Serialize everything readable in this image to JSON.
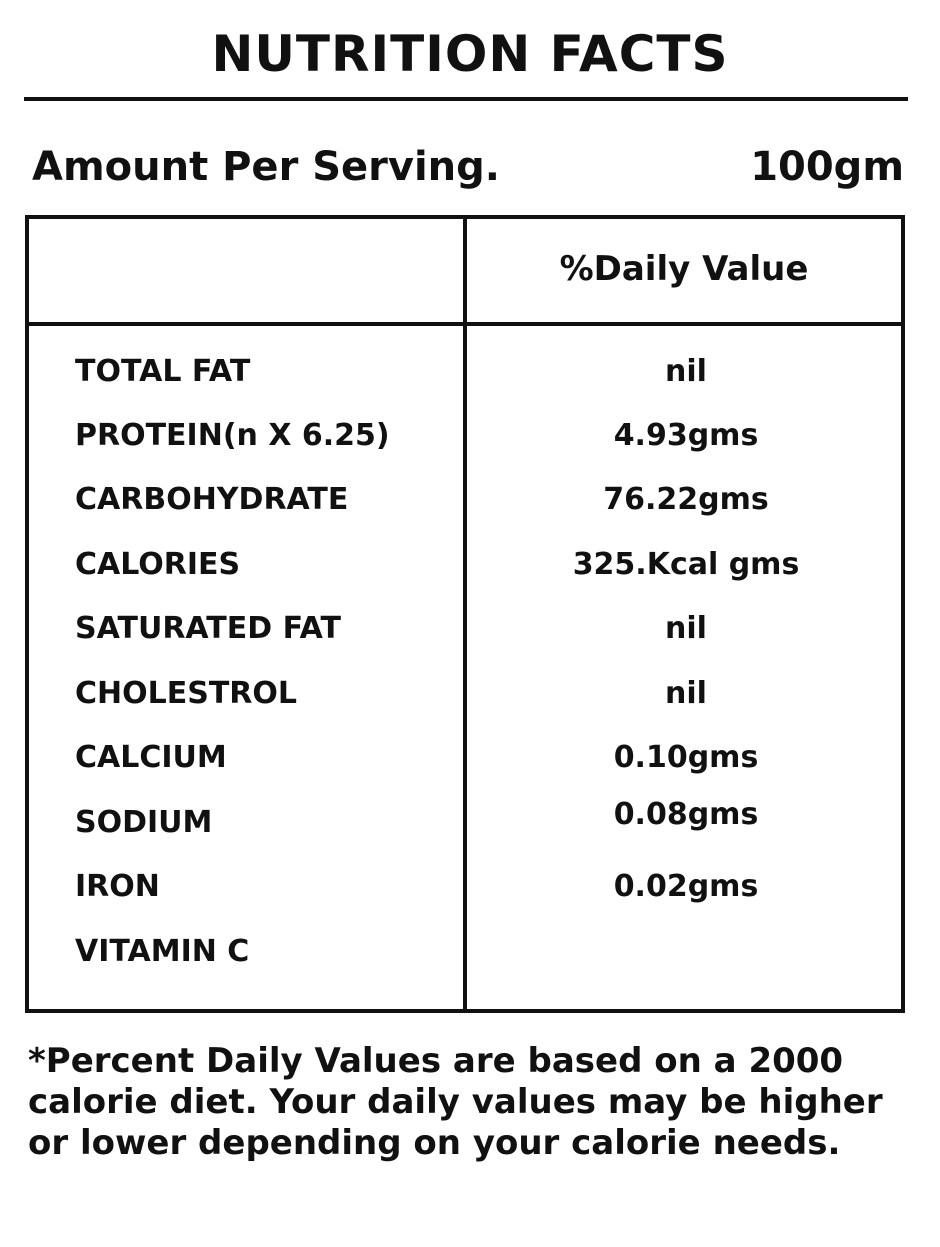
{
  "title": "NUTRITION FACTS",
  "serving": {
    "label": "Amount Per Serving.",
    "value": "100gm"
  },
  "table": {
    "column_header": "%Daily Value",
    "rows": [
      {
        "label": "TOTAL FAT",
        "value": "nil"
      },
      {
        "label": "PROTEIN(n X 6.25)",
        "value": "4.93gms"
      },
      {
        "label": "CARBOHYDRATE",
        "value": "76.22gms"
      },
      {
        "label": "CALORIES",
        "value": "325.Kcal gms"
      },
      {
        "label": "SATURATED FAT",
        "value": "nil"
      },
      {
        "label": "CHOLESTROL",
        "value": "nil"
      },
      {
        "label": "CALCIUM",
        "value": "0.10gms"
      },
      {
        "label": "SODIUM",
        "value": "0.08gms"
      },
      {
        "label": "IRON",
        "value": "0.02gms"
      },
      {
        "label": "VITAMIN C",
        "value": ""
      }
    ]
  },
  "footnote": "*Percent Daily Values are based on a 2000 calorie diet. Your daily values may be higher or lower depending on your calorie needs."
}
